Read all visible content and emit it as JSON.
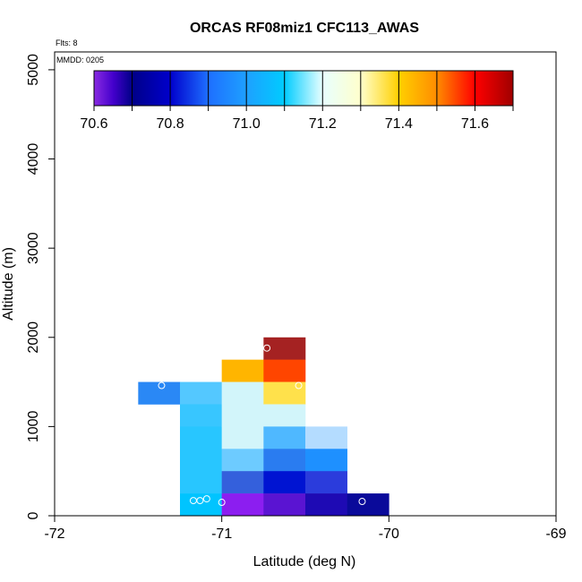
{
  "chart_data": {
    "type": "heatmap",
    "title": "ORCAS RF08miz1 CFC113_AWAS",
    "flights_label": "Flts: 8",
    "date_label": "MMDD: 0205",
    "xlabel": "Latitude (deg N)",
    "ylabel": "Altitude (m)",
    "xlim": [
      -72,
      -69
    ],
    "ylim": [
      0,
      5200
    ],
    "xticks": [
      -72,
      -71,
      -70,
      -69
    ],
    "yticks": [
      0,
      1000,
      2000,
      3000,
      4000,
      5000
    ],
    "colorbar": {
      "min": 70.6,
      "max": 71.7,
      "ticks": [
        70.6,
        70.8,
        71.0,
        71.2,
        71.4,
        71.6
      ],
      "boundaries": [
        70.6,
        70.7,
        70.8,
        70.9,
        71.0,
        71.1,
        71.2,
        71.3,
        71.4,
        71.5,
        71.6,
        71.7
      ],
      "stops": [
        [
          70.6,
          "#8a2be2"
        ],
        [
          70.65,
          "#4400cc"
        ],
        [
          70.7,
          "#000088"
        ],
        [
          70.8,
          "#0000cc"
        ],
        [
          70.9,
          "#1e6fff"
        ],
        [
          71.0,
          "#1ea0ff"
        ],
        [
          71.1,
          "#00ccff"
        ],
        [
          71.2,
          "#e8ffff"
        ],
        [
          71.3,
          "#ffffcc"
        ],
        [
          71.4,
          "#ffd000"
        ],
        [
          71.5,
          "#ff8c00"
        ],
        [
          71.6,
          "#ff0000"
        ],
        [
          71.7,
          "#a00000"
        ]
      ]
    },
    "cell_size": {
      "dlat": 0.25,
      "dalt": 250
    },
    "cells": [
      {
        "lat": -71.5,
        "alt": 1250,
        "color": "#2a88f5"
      },
      {
        "lat": -71.25,
        "alt": 1250,
        "color": "#54c8ff"
      },
      {
        "lat": -71.25,
        "alt": 1000,
        "color": "#38c6ff"
      },
      {
        "lat": -71.25,
        "alt": 750,
        "color": "#28c6ff"
      },
      {
        "lat": -71.25,
        "alt": 500,
        "color": "#28c6ff"
      },
      {
        "lat": -71.25,
        "alt": 250,
        "color": "#28c6ff"
      },
      {
        "lat": -71.25,
        "alt": 0,
        "color": "#00c4ff"
      },
      {
        "lat": -71.0,
        "alt": 1500,
        "color": "#ffb500"
      },
      {
        "lat": -71.0,
        "alt": 1250,
        "color": "#d2f5fa"
      },
      {
        "lat": -71.0,
        "alt": 1000,
        "color": "#d2f5fa"
      },
      {
        "lat": -71.0,
        "alt": 750,
        "color": "#d2f5fa"
      },
      {
        "lat": -71.0,
        "alt": 500,
        "color": "#6dcbff"
      },
      {
        "lat": -71.0,
        "alt": 250,
        "color": "#3460dc"
      },
      {
        "lat": -71.0,
        "alt": 0,
        "color": "#8c1ef0"
      },
      {
        "lat": -70.75,
        "alt": 1750,
        "color": "#a52222"
      },
      {
        "lat": -70.75,
        "alt": 1500,
        "color": "#ff4500"
      },
      {
        "lat": -70.75,
        "alt": 1250,
        "color": "#ffe14b"
      },
      {
        "lat": -70.75,
        "alt": 1000,
        "color": "#d2f5fa"
      },
      {
        "lat": -70.75,
        "alt": 750,
        "color": "#4fb8ff"
      },
      {
        "lat": -70.75,
        "alt": 500,
        "color": "#2a7cf0"
      },
      {
        "lat": -70.75,
        "alt": 250,
        "color": "#0014d2"
      },
      {
        "lat": -70.75,
        "alt": 0,
        "color": "#5a14d2"
      },
      {
        "lat": -70.5,
        "alt": 750,
        "color": "#b4dcff"
      },
      {
        "lat": -70.5,
        "alt": 500,
        "color": "#1e90ff"
      },
      {
        "lat": -70.5,
        "alt": 250,
        "color": "#2b3cdc"
      },
      {
        "lat": -70.5,
        "alt": 0,
        "color": "#1e0ab4"
      },
      {
        "lat": -70.25,
        "alt": 0,
        "color": "#0a0a9a"
      }
    ],
    "points": [
      {
        "lat": -71.36,
        "alt": 1460
      },
      {
        "lat": -70.73,
        "alt": 1880
      },
      {
        "lat": -70.54,
        "alt": 1460
      },
      {
        "lat": -71.17,
        "alt": 170
      },
      {
        "lat": -71.13,
        "alt": 170
      },
      {
        "lat": -71.09,
        "alt": 190
      },
      {
        "lat": -71.0,
        "alt": 150
      },
      {
        "lat": -70.16,
        "alt": 160
      }
    ]
  }
}
